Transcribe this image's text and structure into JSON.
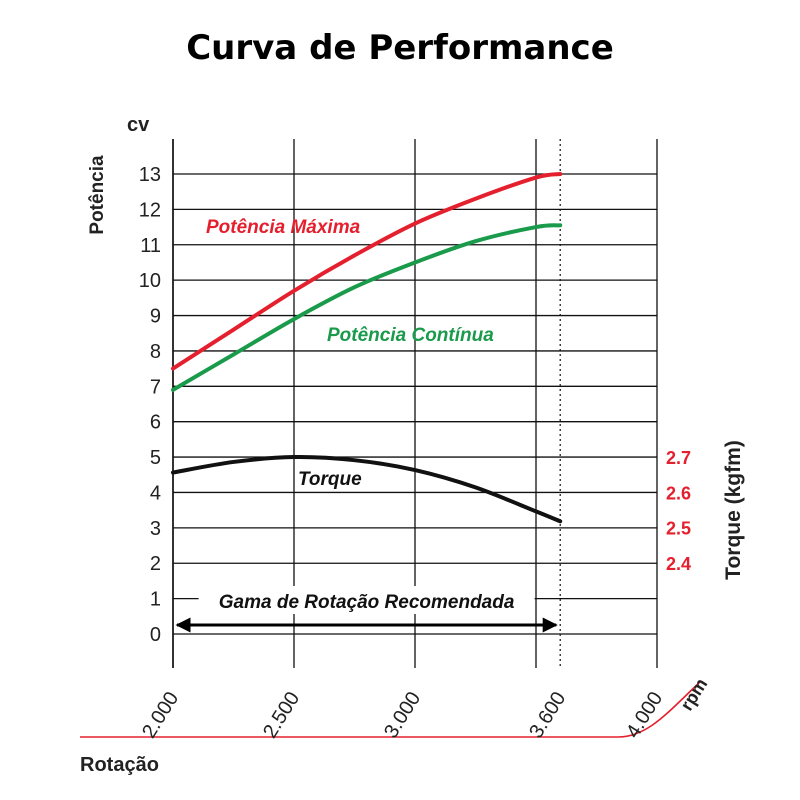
{
  "title": "Curva de Performance",
  "chart_data": {
    "type": "line",
    "title": "Curva de Performance",
    "xlabel": "Rotação",
    "x_unit": "rpm",
    "ylabel": "Potência",
    "y_unit": "cv",
    "y2label": "Torque (kgfm)",
    "x_ticks": [
      2000,
      2500,
      3000,
      3600,
      4000
    ],
    "x_tick_labels": [
      "2.000",
      "2.500",
      "3.000",
      "3.600",
      "4.000"
    ],
    "xlim": [
      2000,
      4000
    ],
    "y_ticks": [
      0,
      1,
      2,
      3,
      4,
      5,
      6,
      7,
      8,
      9,
      10,
      11,
      12,
      13
    ],
    "y_tick_labels": [
      "0",
      "1",
      "2",
      "3",
      "4",
      "5",
      "6",
      "7",
      "8",
      "9",
      "10",
      "11",
      "12",
      "13"
    ],
    "ylim": [
      0,
      13
    ],
    "y2_ticks": [
      2.4,
      2.5,
      2.6,
      2.7
    ],
    "y2_tick_labels": [
      "2.4",
      "2.5",
      "2.6",
      "2.7"
    ],
    "y2_color": "#e5202e",
    "grid": true,
    "series": [
      {
        "name": "Potência Máxima",
        "color": "#e5202e",
        "axis": "left",
        "x": [
          2000,
          2250,
          2500,
          2750,
          3000,
          3250,
          3500,
          3600
        ],
        "y": [
          7.5,
          8.6,
          9.7,
          10.7,
          11.6,
          12.3,
          12.9,
          13.0
        ]
      },
      {
        "name": "Potência Contínua",
        "color": "#1a9a4b",
        "axis": "left",
        "x": [
          2000,
          2250,
          2500,
          2750,
          3000,
          3250,
          3500,
          3600
        ],
        "y": [
          6.9,
          7.9,
          8.9,
          9.8,
          10.5,
          11.1,
          11.5,
          11.55
        ]
      },
      {
        "name": "Torque",
        "color": "#111111",
        "axis": "right",
        "x": [
          2000,
          2250,
          2500,
          2750,
          3000,
          3250,
          3500,
          3600
        ],
        "y": [
          2.656,
          2.686,
          2.7,
          2.691,
          2.663,
          2.614,
          2.546,
          2.518
        ]
      }
    ],
    "annotations": [
      {
        "text": "Gama de Rotação Recomendada",
        "type": "range-arrow",
        "x_range": [
          2000,
          3600
        ]
      },
      {
        "type": "reference-line",
        "style": "dotted",
        "x": 3600
      }
    ]
  }
}
